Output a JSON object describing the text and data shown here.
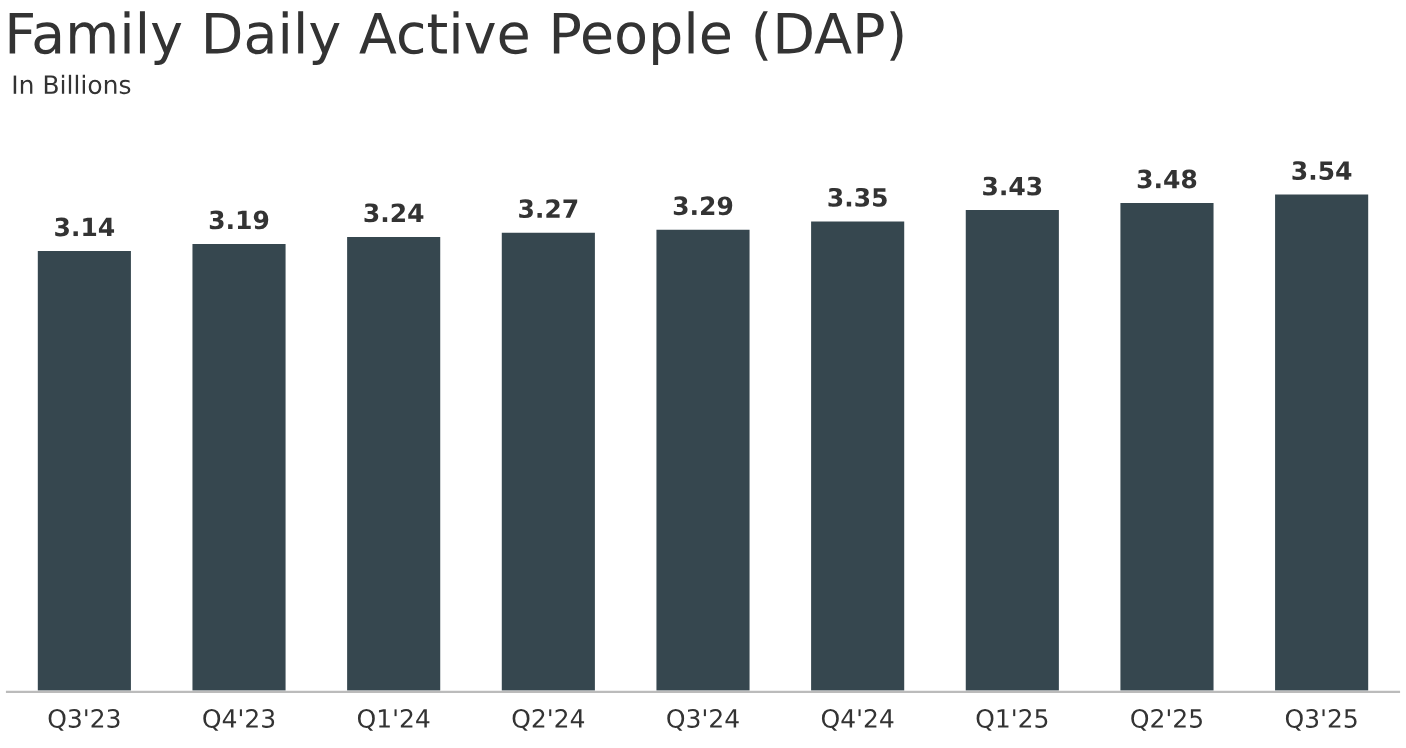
{
  "chart_data": {
    "type": "bar",
    "title": "Family Daily Active People (DAP)",
    "subtitle": "In Billions",
    "categories": [
      "Q3'23",
      "Q4'23",
      "Q1'24",
      "Q2'24",
      "Q3'24",
      "Q4'24",
      "Q1'25",
      "Q2'25",
      "Q3'25"
    ],
    "values": [
      3.14,
      3.19,
      3.24,
      3.27,
      3.29,
      3.35,
      3.43,
      3.48,
      3.54
    ],
    "color": "#36474f",
    "data_labels": true,
    "grid": false,
    "legend": false
  }
}
